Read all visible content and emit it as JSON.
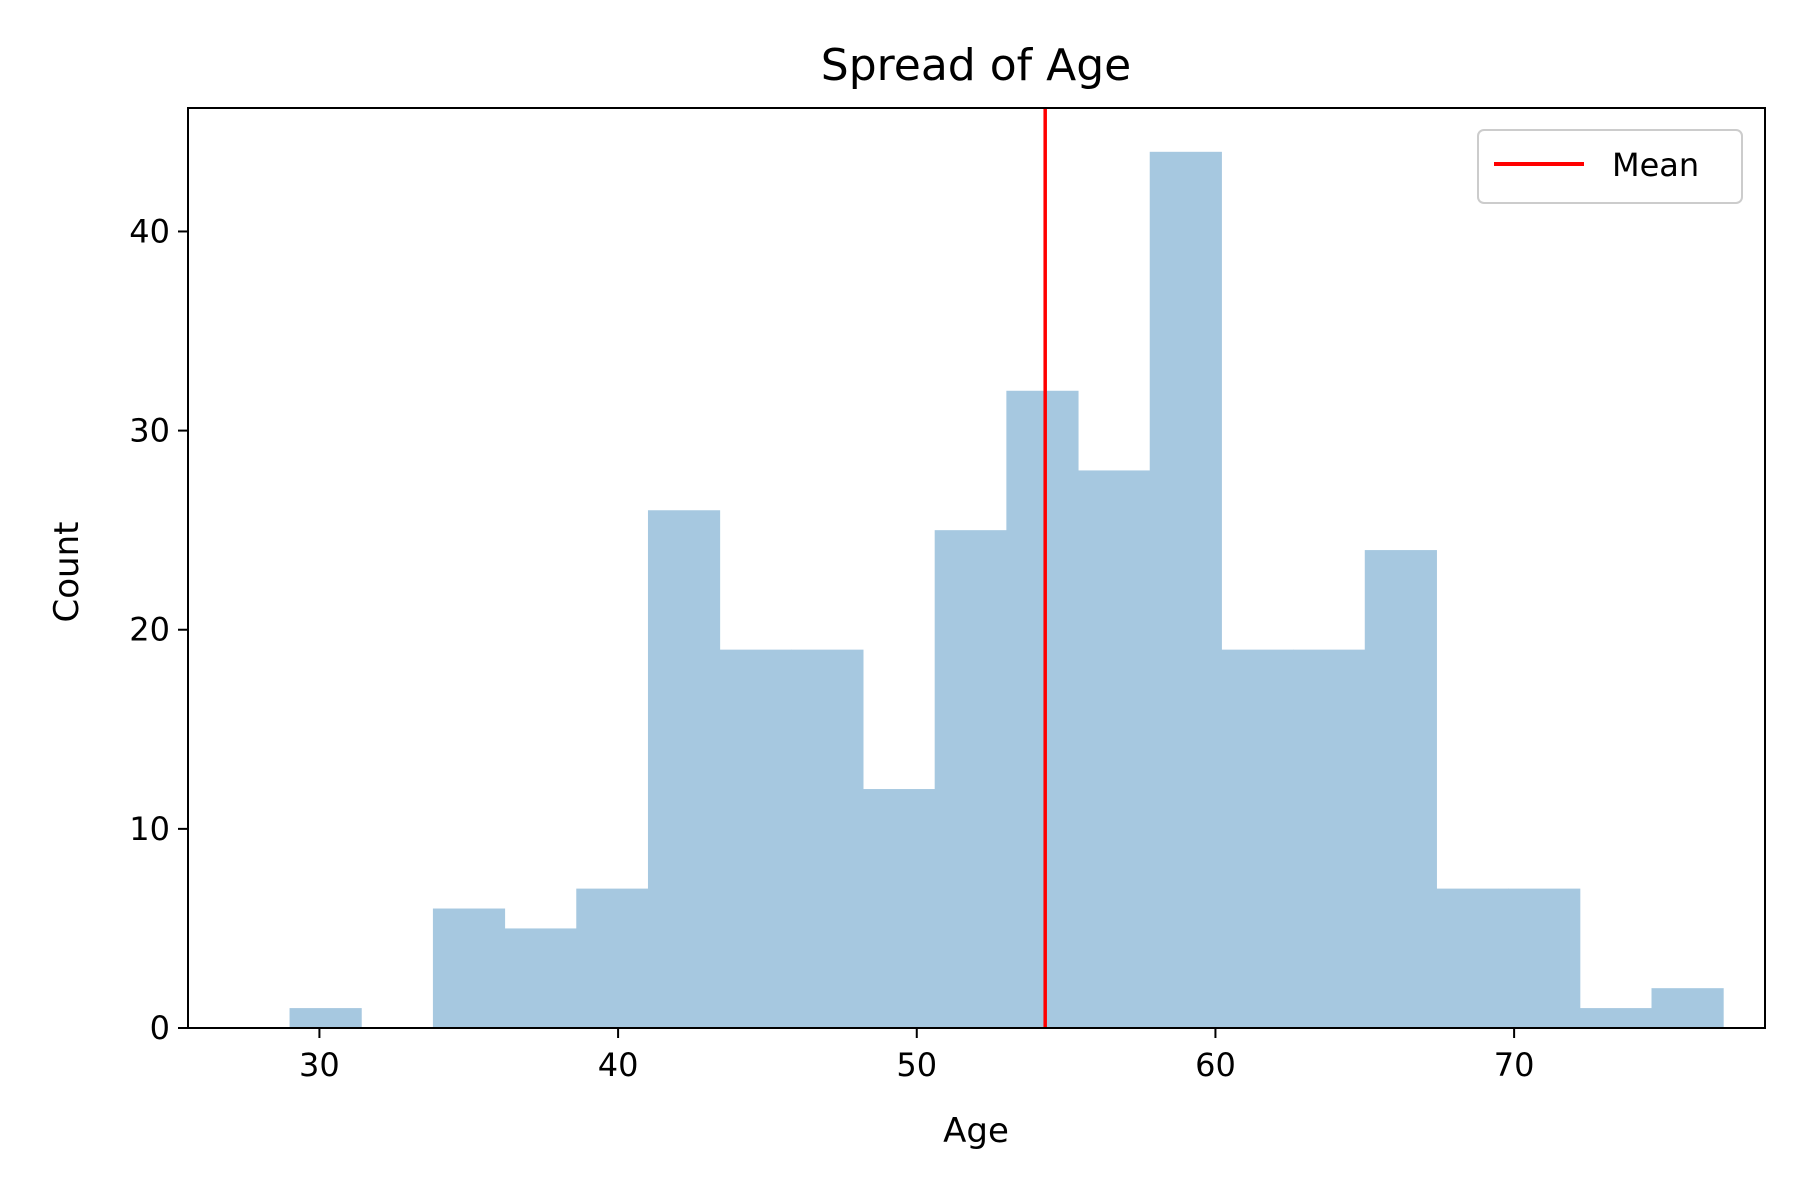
{
  "chart_data": {
    "type": "bar",
    "title": "Spread of Age",
    "xlabel": "Age",
    "ylabel": "Count",
    "bin_edges": [
      29.0,
      31.4,
      33.8,
      36.2,
      38.6,
      41.0,
      43.4,
      45.8,
      48.2,
      50.6,
      53.0,
      55.4,
      57.8,
      60.2,
      62.6,
      65.0,
      67.4,
      69.8,
      72.2,
      74.6,
      77.0
    ],
    "counts": [
      1,
      0,
      6,
      5,
      7,
      26,
      19,
      19,
      12,
      25,
      32,
      28,
      44,
      19,
      19,
      24,
      7,
      7,
      1,
      2
    ],
    "bar_color": "#a6c8e0",
    "mean": 54.3,
    "mean_color": "#ff0000",
    "legend": {
      "entries": [
        "Mean"
      ],
      "placement": "top-right"
    },
    "xlim": [
      25.6,
      78.4
    ],
    "ylim": [
      0,
      46.2
    ],
    "xticks": [
      30,
      40,
      50,
      60,
      70
    ],
    "yticks": [
      0,
      10,
      20,
      30,
      40
    ],
    "grid": false
  }
}
